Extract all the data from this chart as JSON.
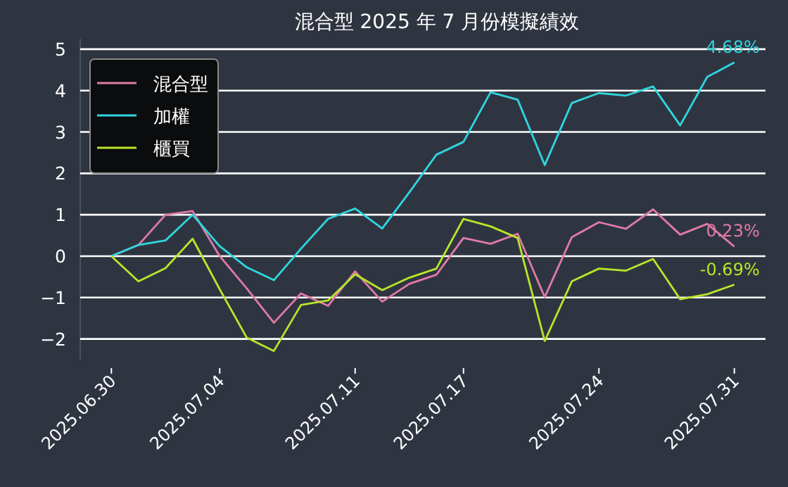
{
  "chart_data": {
    "type": "line",
    "title": "混合型 2025 年 7 月份模擬績效",
    "categories": [
      "2025.06.30",
      null,
      null,
      null,
      "2025.07.04",
      null,
      null,
      null,
      null,
      "2025.07.11",
      null,
      null,
      null,
      "2025.07.17",
      null,
      null,
      null,
      null,
      "2025.07.24",
      null,
      null,
      null,
      null,
      "2025.07.31"
    ],
    "series": [
      {
        "name": "混合型",
        "color": "#e07aa8",
        "values": [
          0,
          0.27,
          1.0,
          1.09,
          0,
          -0.78,
          -1.61,
          -0.9,
          -1.2,
          -0.37,
          -1.1,
          -0.67,
          -0.45,
          0.44,
          0.3,
          0.54,
          -0.99,
          0.46,
          0.82,
          0.66,
          1.13,
          0.52,
          0.78,
          0.23
        ]
      },
      {
        "name": "加權",
        "color": "#2fd6e0",
        "values": [
          0,
          0.27,
          0.38,
          1.0,
          0.24,
          -0.27,
          -0.58,
          0.18,
          0.9,
          1.15,
          0.67,
          1.54,
          2.45,
          2.76,
          3.96,
          3.78,
          2.2,
          3.7,
          3.94,
          3.88,
          4.1,
          3.16,
          4.33,
          4.68
        ]
      },
      {
        "name": "櫃買",
        "color": "#b8e62a",
        "values": [
          0,
          -0.61,
          -0.29,
          0.42,
          -0.8,
          -1.97,
          -2.29,
          -1.18,
          -1.07,
          -0.44,
          -0.82,
          -0.52,
          -0.3,
          0.9,
          0.72,
          0.44,
          -2.05,
          -0.61,
          -0.3,
          -0.35,
          -0.07,
          -1.04,
          -0.92,
          -0.69
        ]
      }
    ],
    "ylim": [
      -2.5,
      5.25
    ],
    "yticks": [
      -2,
      -1,
      0,
      1,
      2,
      3,
      4,
      5
    ],
    "grid": "y",
    "legend": "top left",
    "annotations": [
      {
        "text": "4.68%",
        "x": "2025.07.31",
        "y": 4.68
      },
      {
        "text": "0.23%",
        "x": "2025.07.31",
        "y": 0.23
      },
      {
        "text": "-0.69%",
        "x": "2025.07.31",
        "y": -0.69
      }
    ]
  }
}
